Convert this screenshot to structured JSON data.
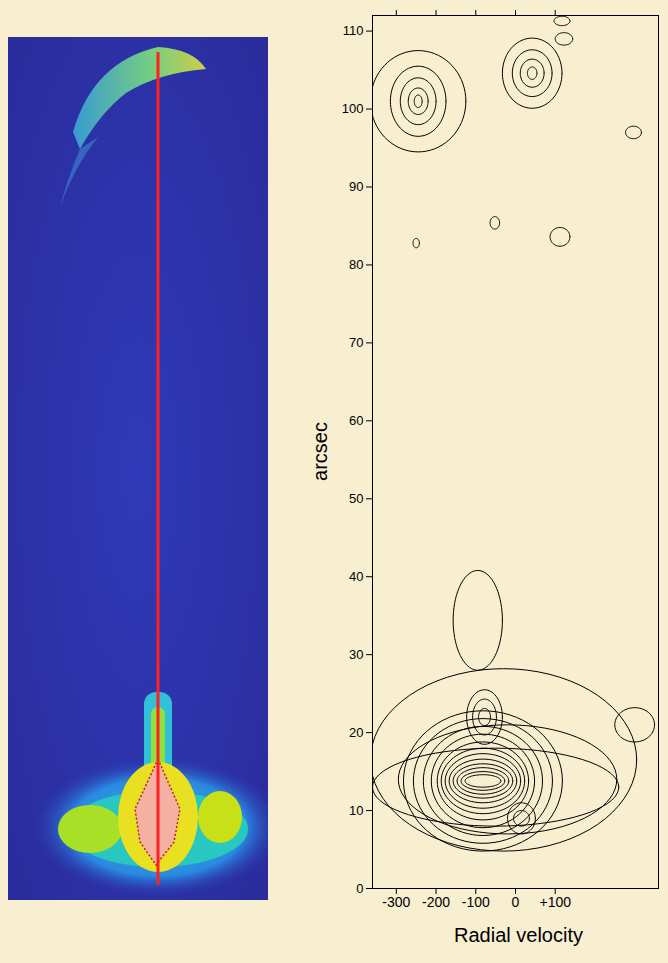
{
  "chart_data": {
    "type": "contour",
    "x_label": "Radial velocity",
    "y_label": "arcsec",
    "color": "#000000",
    "xlim": [
      -360,
      360
    ],
    "ylim": [
      0,
      112
    ],
    "xticks": [
      -300,
      -200,
      -100,
      0,
      {
        "value": 100,
        "label": "+100"
      }
    ],
    "yticks": [
      0,
      10,
      20,
      30,
      40,
      50,
      60,
      70,
      80,
      90,
      100,
      110
    ],
    "contours": [
      {
        "v": -30,
        "pos": 16.5,
        "dv": [
          335
        ],
        "dpos": [
          11.7
        ]
      },
      {
        "v": -50,
        "pos": 13,
        "dv": [
          310
        ],
        "dpos": [
          5
        ]
      },
      {
        "v": -20,
        "pos": 14,
        "dv": [
          275
        ],
        "dpos": [
          7
        ]
      },
      {
        "v": -82,
        "pos": 13.8,
        "dv": [
          200,
          175,
          150,
          130,
          115,
          105,
          95,
          85,
          75,
          65,
          55,
          45
        ],
        "dpos": [
          9,
          8,
          7,
          6,
          5,
          4.2,
          3.5,
          2.8,
          2.2,
          1.7,
          1.2,
          0.8
        ]
      },
      {
        "v": -78,
        "pos": 22,
        "dv": [
          45,
          30,
          15
        ],
        "dpos": [
          3.5,
          2.3,
          1.1
        ]
      },
      {
        "v": 15,
        "pos": 9,
        "dv": [
          35,
          20
        ],
        "dpos": [
          2,
          1
        ]
      },
      {
        "v": 300,
        "pos": 21,
        "dv": [
          50
        ],
        "dpos": [
          2.2
        ]
      },
      {
        "v": -95,
        "pos": 34.4,
        "dv": [
          62
        ],
        "dpos": [
          6.4
        ]
      },
      {
        "v": -245,
        "pos": 101,
        "dv": [
          120,
          70,
          45,
          25,
          10
        ],
        "dpos": [
          6.5,
          4.5,
          3,
          1.7,
          0.8
        ]
      },
      {
        "v": 42,
        "pos": 104.6,
        "dv": [
          75,
          50,
          30,
          12
        ],
        "dpos": [
          4.5,
          3,
          1.8,
          0.8
        ]
      },
      {
        "v": -250,
        "pos": 82.8,
        "dv": [
          8
        ],
        "dpos": [
          0.6
        ]
      },
      {
        "v": -52,
        "pos": 85.4,
        "dv": [
          12
        ],
        "dpos": [
          0.8
        ]
      },
      {
        "v": 112,
        "pos": 83.6,
        "dv": [
          25
        ],
        "dpos": [
          1.2
        ]
      },
      {
        "v": 297,
        "pos": 97,
        "dv": [
          20
        ],
        "dpos": [
          0.8
        ]
      },
      {
        "v": 122,
        "pos": 109,
        "dv": [
          22
        ],
        "dpos": [
          0.8
        ]
      },
      {
        "v": 117,
        "pos": 111.3,
        "dv": [
          20
        ],
        "dpos": [
          0.6
        ]
      }
    ]
  }
}
